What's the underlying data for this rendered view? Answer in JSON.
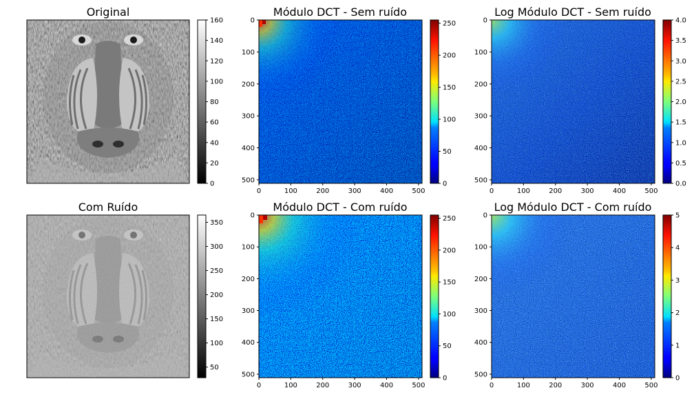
{
  "figure": {
    "background": "#ffffff"
  },
  "chart_data": [
    {
      "type": "heatmap",
      "title": "Original",
      "colormap": "gray",
      "image": "baboon grayscale photograph",
      "colorbar": {
        "range": [
          0,
          160
        ],
        "ticks": [
          0,
          20,
          40,
          60,
          80,
          100,
          120,
          140,
          160
        ]
      },
      "axes_visible": false
    },
    {
      "type": "heatmap",
      "title": "Módulo DCT - Sem ruído",
      "colormap": "jet",
      "xlim": [
        0,
        511
      ],
      "ylim": [
        511,
        0
      ],
      "xticks": [
        0,
        100,
        200,
        300,
        400,
        500
      ],
      "yticks": [
        0,
        100,
        200,
        300,
        400,
        500
      ],
      "colorbar": {
        "range": [
          0,
          255
        ],
        "ticks": [
          0,
          50,
          100,
          150,
          200,
          250
        ]
      }
    },
    {
      "type": "heatmap",
      "title": "Log Módulo DCT - Sem ruído",
      "colormap": "jet",
      "xlim": [
        0,
        511
      ],
      "ylim": [
        511,
        0
      ],
      "xticks": [
        0,
        100,
        200,
        300,
        400,
        500
      ],
      "yticks": [
        0,
        100,
        200,
        300,
        400,
        500
      ],
      "colorbar": {
        "range": [
          0,
          4
        ],
        "ticks": [
          "0.0",
          "0.5",
          "1.0",
          "1.5",
          "2.0",
          "2.5",
          "3.0",
          "3.5",
          "4.0"
        ]
      }
    },
    {
      "type": "heatmap",
      "title": "Com Ruído",
      "colormap": "gray",
      "image": "baboon grayscale photograph with added noise",
      "colorbar": {
        "range": [
          28,
          365
        ],
        "ticks": [
          50,
          100,
          150,
          200,
          250,
          300,
          350
        ]
      },
      "axes_visible": false
    },
    {
      "type": "heatmap",
      "title": "Módulo DCT - Com ruído",
      "colormap": "jet",
      "xlim": [
        0,
        511
      ],
      "ylim": [
        511,
        0
      ],
      "xticks": [
        0,
        100,
        200,
        300,
        400,
        500
      ],
      "yticks": [
        0,
        100,
        200,
        300,
        400,
        500
      ],
      "colorbar": {
        "range": [
          0,
          255
        ],
        "ticks": [
          0,
          50,
          100,
          150,
          200,
          250
        ]
      }
    },
    {
      "type": "heatmap",
      "title": "Log Módulo DCT - Com ruído",
      "colormap": "jet",
      "xlim": [
        0,
        511
      ],
      "ylim": [
        511,
        0
      ],
      "xticks": [
        0,
        100,
        200,
        300,
        400,
        500
      ],
      "yticks": [
        0,
        100,
        200,
        300,
        400,
        500
      ],
      "colorbar": {
        "range": [
          0,
          5
        ],
        "ticks": [
          0,
          1,
          2,
          3,
          4,
          5
        ]
      }
    }
  ]
}
